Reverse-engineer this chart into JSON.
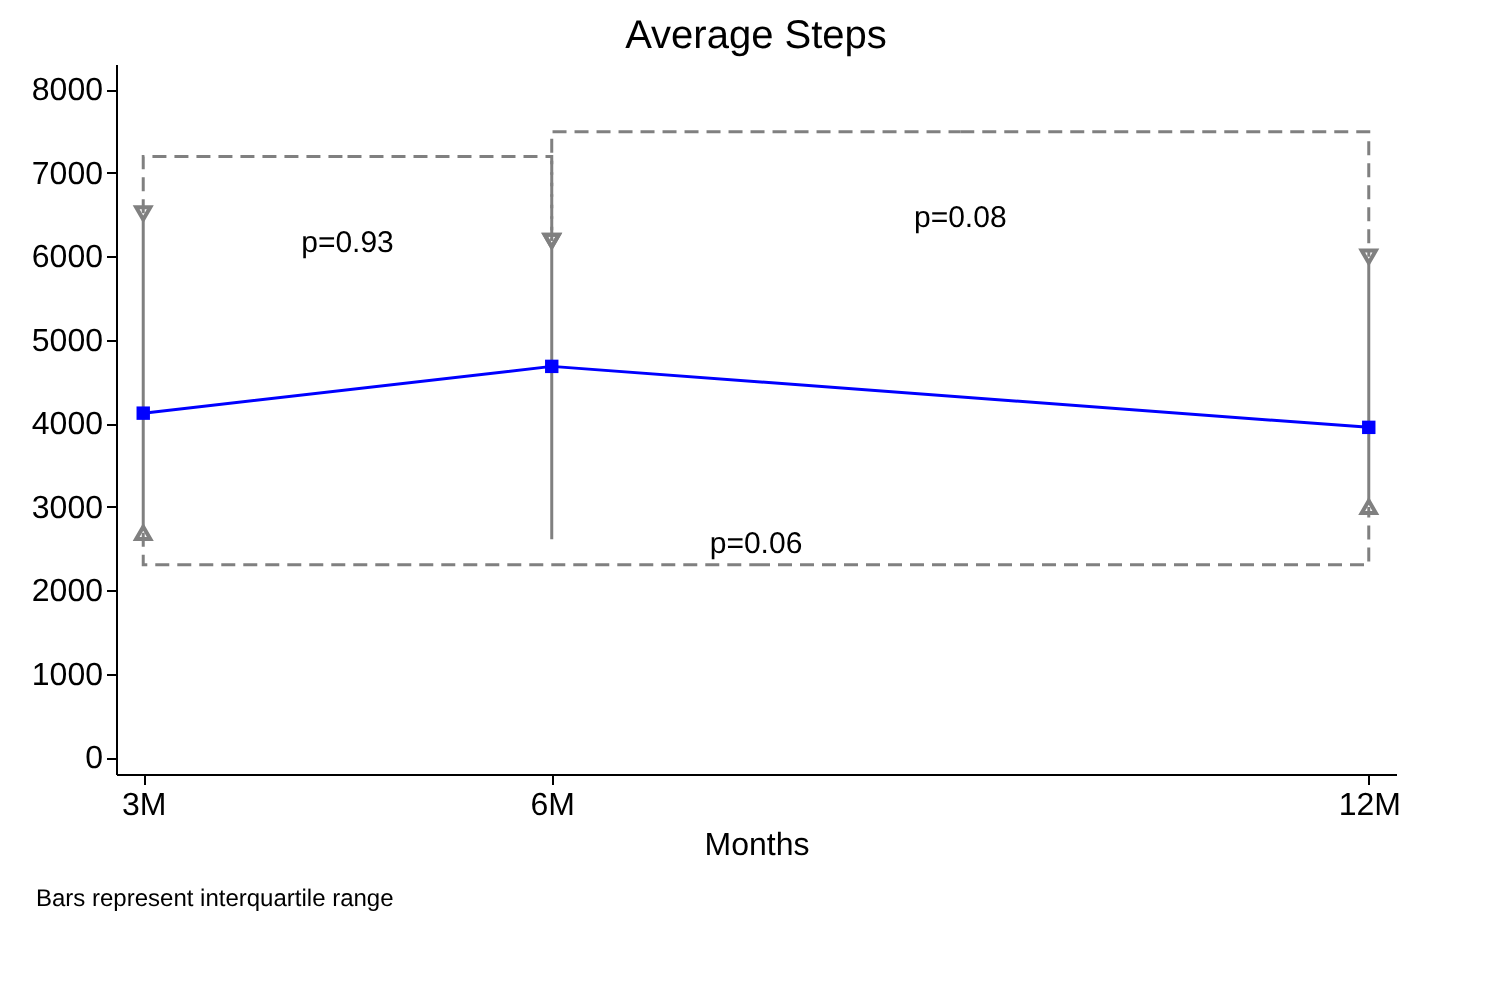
{
  "chart_data": {
    "type": "line",
    "title": "Average Steps",
    "xlabel": "Months",
    "x": [
      3,
      6,
      12
    ],
    "series": [
      {
        "color": "#0000ff",
        "values": [
          4120,
          4680,
          3950
        ],
        "errors": [
          [
            2730,
            6470
          ],
          [
            2610,
            6140
          ],
          [
            3040,
            5950
          ]
        ]
      }
    ],
    "xlim": [
      2.8,
      12.2
    ],
    "xticks": [
      {
        "value": 3,
        "label": "3M"
      },
      {
        "value": 6,
        "label": "6M"
      },
      {
        "value": 12,
        "label": "12M"
      }
    ],
    "ylim": [
      -200,
      8300
    ],
    "yticks": [
      0,
      1000,
      2000,
      3000,
      4000,
      5000,
      6000,
      7000,
      8000
    ],
    "marker": "square",
    "line_style": "solid",
    "grid": false,
    "annotations": [
      "p=0.93",
      "p=0.08",
      "p=0.06",
      "Bars represent interquartile range"
    ]
  }
}
